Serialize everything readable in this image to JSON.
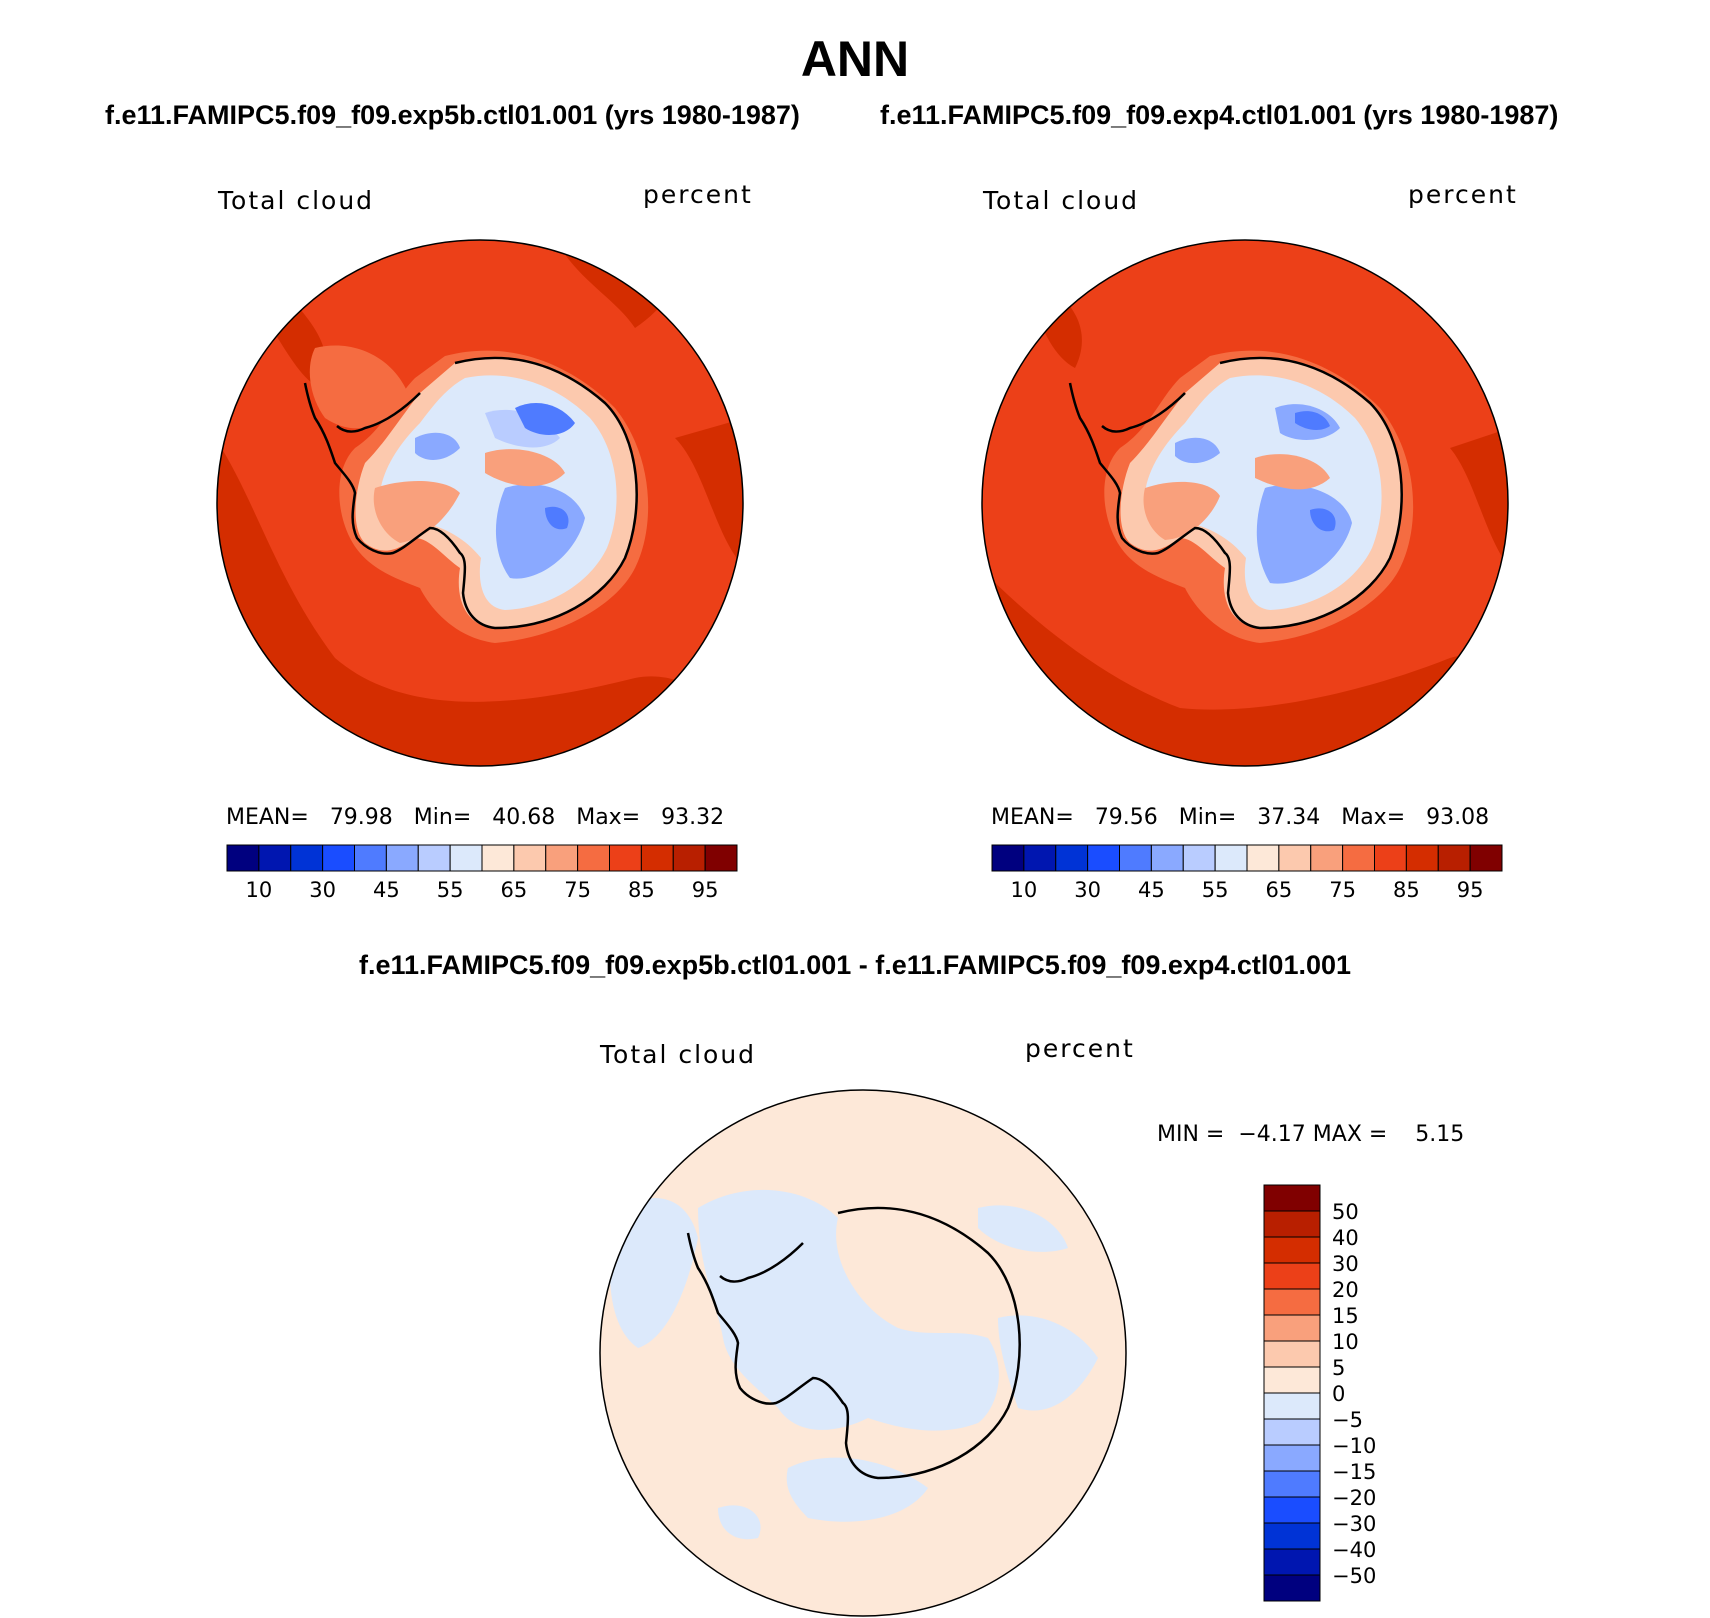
{
  "page": {
    "title": "ANN"
  },
  "panels": [
    {
      "case_title": "f.e11.FAMIPC5.f09_f09.exp5b.ctl01.001 (yrs 1980-1987)",
      "variable": "Total cloud",
      "units": "percent",
      "stats": {
        "mean_label": "MEAN=",
        "mean": "79.98",
        "min_label": "Min=",
        "min": "40.68",
        "max_label": "Max=",
        "max": "93.32"
      }
    },
    {
      "case_title": "f.e11.FAMIPC5.f09_f09.exp4.ctl01.001 (yrs 1980-1987)",
      "variable": "Total cloud",
      "units": "percent",
      "stats": {
        "mean_label": "MEAN=",
        "mean": "79.56",
        "min_label": "Min=",
        "min": "37.34",
        "max_label": "Max=",
        "max": "93.08"
      }
    }
  ],
  "colorbar_horizontal": {
    "colors": [
      "#00007f",
      "#0016b0",
      "#0033d6",
      "#1a4dff",
      "#4f7bff",
      "#8aa9ff",
      "#b9ccff",
      "#dce9fb",
      "#fde8d8",
      "#fcc9ae",
      "#f9a07c",
      "#f56c41",
      "#ec4018",
      "#d42d00",
      "#b81f00",
      "#800000"
    ],
    "tick_labels": [
      "10",
      "30",
      "45",
      "55",
      "65",
      "75",
      "85",
      "95"
    ]
  },
  "difference_panel": {
    "title": "f.e11.FAMIPC5.f09_f09.exp5b.ctl01.001 - f.e11.FAMIPC5.f09_f09.exp4.ctl01.001",
    "variable": "Total cloud",
    "units": "percent",
    "stats": {
      "min_label": "MIN =",
      "min": "−4.17",
      "max_label": "MAX =",
      "max": "5.15"
    },
    "colorbar": {
      "colors_top_to_bottom": [
        "#800000",
        "#b81f00",
        "#d42d00",
        "#ec4018",
        "#f56c41",
        "#f9a07c",
        "#fcc9ae",
        "#fde8d8",
        "#dce9fb",
        "#b9ccff",
        "#8aa9ff",
        "#4f7bff",
        "#1a4dff",
        "#0033d6",
        "#0016b0",
        "#00007f"
      ],
      "tick_labels": [
        "50",
        "40",
        "30",
        "20",
        "15",
        "10",
        "5",
        "0",
        "−5",
        "−10",
        "−15",
        "−20",
        "−30",
        "−40",
        "−50"
      ]
    }
  },
  "map_colors": {
    "ocean_high": "#ec4018",
    "ocean_very_high": "#d42d00",
    "ocean_band": "#f56c41",
    "coast_band": "#fcc9ae",
    "interior_light": "#dce9fb",
    "interior_mid": "#b9ccff",
    "interior_blue": "#8aa9ff",
    "interior_deep": "#4f7bff",
    "interior_warm": "#f9a07c",
    "diff_positive": "#fde8d8",
    "diff_negative": "#dce9fb"
  }
}
